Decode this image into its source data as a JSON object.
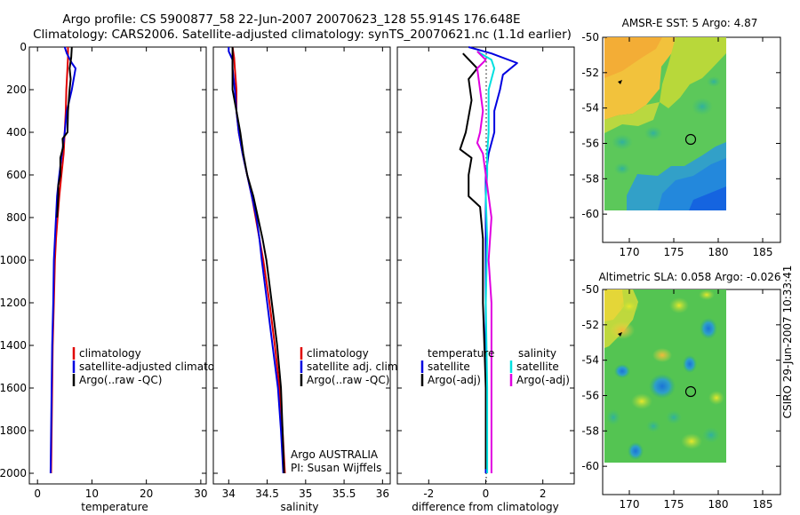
{
  "title_line1": "Argo profile: CS 5900877_58 22-Jun-2007 20070623_128 55.914S 176.648E",
  "title_line2": "Climatology: CARS2006. Satellite-adjusted climatology: synTS_20070621.nc (1.1d earlier)",
  "side_label": "CSIRO 29-Jun-2007 10:33:41",
  "colors": {
    "climatology": "#e00000",
    "satellite": "#0000e0",
    "argo": "#000000",
    "satellite_sal": "#00e0e0",
    "argo_adj": "#e000e0"
  },
  "chart_data": [
    {
      "id": "temperature",
      "type": "line",
      "xlabel": "temperature",
      "xlim": [
        -1.5,
        31
      ],
      "xticks": [
        0,
        10,
        20,
        30
      ],
      "xtick_labels": [
        "0",
        "10",
        "20",
        "30"
      ],
      "ylim": [
        2050,
        0
      ],
      "yticks": [
        0,
        200,
        400,
        600,
        800,
        1000,
        1200,
        1400,
        1600,
        1800,
        2000
      ],
      "ytick_labels": [
        "0",
        "200",
        "400",
        "600",
        "800",
        "1000",
        "1200",
        "1400",
        "1600",
        "1800",
        "2000"
      ],
      "legend": {
        "position": "lower-right",
        "entries": [
          "climatology",
          "satellite-adjusted climatology",
          "Argo(..raw -QC)"
        ]
      },
      "series": [
        {
          "name": "climatology",
          "color_key": "climatology",
          "points": [
            [
              5.6,
              0
            ],
            [
              5.6,
              50
            ],
            [
              5.5,
              100
            ],
            [
              5.3,
              200
            ],
            [
              5.2,
              300
            ],
            [
              5.0,
              400
            ],
            [
              4.8,
              500
            ],
            [
              4.4,
              600
            ],
            [
              4.0,
              700
            ],
            [
              3.7,
              800
            ],
            [
              3.4,
              900
            ],
            [
              3.2,
              1000
            ],
            [
              3.0,
              1200
            ],
            [
              2.8,
              1400
            ],
            [
              2.7,
              1600
            ],
            [
              2.6,
              1800
            ],
            [
              2.5,
              2000
            ]
          ]
        },
        {
          "name": "satellite-adjusted climatology",
          "color_key": "satellite",
          "points": [
            [
              5.0,
              0
            ],
            [
              5.4,
              30
            ],
            [
              6.3,
              75
            ],
            [
              7.0,
              100
            ],
            [
              6.3,
              200
            ],
            [
              5.4,
              300
            ],
            [
              5.0,
              400
            ],
            [
              4.5,
              500
            ],
            [
              4.0,
              600
            ],
            [
              3.6,
              700
            ],
            [
              3.4,
              800
            ],
            [
              3.2,
              900
            ],
            [
              3.0,
              1000
            ],
            [
              2.9,
              1200
            ],
            [
              2.7,
              1400
            ],
            [
              2.6,
              1600
            ],
            [
              2.5,
              1800
            ],
            [
              2.4,
              2000
            ]
          ]
        },
        {
          "name": "Argo(..raw -QC)",
          "color_key": "argo",
          "points": [
            [
              6.3,
              0
            ],
            [
              6.2,
              50
            ],
            [
              5.9,
              100
            ],
            [
              6.1,
              150
            ],
            [
              5.9,
              200
            ],
            [
              5.6,
              300
            ],
            [
              5.5,
              400
            ],
            [
              4.6,
              430
            ],
            [
              4.7,
              470
            ],
            [
              4.2,
              520
            ],
            [
              4.2,
              600
            ],
            [
              3.8,
              650
            ],
            [
              3.8,
              700
            ],
            [
              3.6,
              800
            ]
          ]
        }
      ]
    },
    {
      "id": "salinity",
      "type": "line",
      "xlabel": "salinity",
      "xlim": [
        33.8,
        36.1
      ],
      "xticks": [
        34,
        34.5,
        35,
        35.5,
        36
      ],
      "xtick_labels": [
        "34",
        "34.5",
        "35",
        "35.5",
        "36"
      ],
      "ylim": [
        2050,
        0
      ],
      "yticks": [
        0,
        200,
        400,
        600,
        800,
        1000,
        1200,
        1400,
        1600,
        1800,
        2000
      ],
      "legend": {
        "position": "lower-right",
        "entries": [
          "climatology",
          "satellite adj. clim.",
          "Argo(..raw -QC)"
        ]
      },
      "annotation": [
        "Argo AUSTRALIA",
        "PI: Susan Wijffels"
      ],
      "series": [
        {
          "name": "climatology",
          "color_key": "climatology",
          "points": [
            [
              34.05,
              0
            ],
            [
              34.07,
              50
            ],
            [
              34.08,
              100
            ],
            [
              34.1,
              200
            ],
            [
              34.1,
              300
            ],
            [
              34.13,
              400
            ],
            [
              34.18,
              500
            ],
            [
              34.24,
              600
            ],
            [
              34.3,
              700
            ],
            [
              34.35,
              800
            ],
            [
              34.4,
              900
            ],
            [
              34.45,
              1000
            ],
            [
              34.53,
              1200
            ],
            [
              34.6,
              1400
            ],
            [
              34.66,
              1600
            ],
            [
              34.7,
              1800
            ],
            [
              34.73,
              2000
            ]
          ]
        },
        {
          "name": "satellite adj. clim.",
          "color_key": "satellite",
          "points": [
            [
              34.0,
              0
            ],
            [
              34.0,
              20
            ],
            [
              34.05,
              60
            ],
            [
              34.05,
              100
            ],
            [
              34.08,
              200
            ],
            [
              34.1,
              300
            ],
            [
              34.13,
              400
            ],
            [
              34.18,
              500
            ],
            [
              34.24,
              600
            ],
            [
              34.3,
              700
            ],
            [
              34.36,
              800
            ],
            [
              34.4,
              900
            ],
            [
              34.43,
              1000
            ],
            [
              34.5,
              1200
            ],
            [
              34.57,
              1400
            ],
            [
              34.64,
              1600
            ],
            [
              34.68,
              1800
            ],
            [
              34.71,
              2000
            ]
          ]
        },
        {
          "name": "Argo(..raw -QC)",
          "color_key": "argo",
          "points": [
            [
              34.05,
              0
            ],
            [
              34.05,
              100
            ],
            [
              34.05,
              200
            ],
            [
              34.1,
              300
            ],
            [
              34.15,
              400
            ],
            [
              34.19,
              500
            ],
            [
              34.24,
              600
            ],
            [
              34.32,
              700
            ],
            [
              34.38,
              800
            ],
            [
              34.44,
              900
            ],
            [
              34.49,
              1000
            ],
            [
              34.56,
              1200
            ],
            [
              34.63,
              1400
            ],
            [
              34.68,
              1600
            ],
            [
              34.7,
              1800
            ],
            [
              34.72,
              2000
            ]
          ]
        }
      ]
    },
    {
      "id": "difference",
      "type": "line",
      "xlabel": "difference from climatology",
      "xlim": [
        -3.1,
        3.1
      ],
      "xticks": [
        -2,
        0,
        2
      ],
      "xtick_labels": [
        "-2",
        "0",
        "2"
      ],
      "ylim": [
        2050,
        0
      ],
      "yticks": [
        0,
        200,
        400,
        600,
        800,
        1000,
        1200,
        1400,
        1600,
        1800,
        2000
      ],
      "legend": {
        "position": "lower-right",
        "headers": [
          "temperature",
          "salinity"
        ],
        "entries": [
          "satellite",
          "Argo(-adj)",
          "satellite",
          "Argo(-adj)"
        ]
      },
      "series": [
        {
          "name": "temperature satellite",
          "color_key": "satellite",
          "points": [
            [
              -0.6,
              0
            ],
            [
              0.2,
              30
            ],
            [
              1.1,
              75
            ],
            [
              0.6,
              130
            ],
            [
              0.5,
              200
            ],
            [
              0.3,
              300
            ],
            [
              0.3,
              400
            ],
            [
              0.1,
              500
            ],
            [
              0.0,
              600
            ],
            [
              0.0,
              700
            ],
            [
              0.0,
              800
            ],
            [
              0.0,
              1000
            ],
            [
              0.0,
              1400
            ],
            [
              0.0,
              1800
            ],
            [
              0.0,
              2000
            ]
          ]
        },
        {
          "name": "temperature Argo(-adj)",
          "color_key": "argo",
          "points": [
            [
              -0.8,
              30
            ],
            [
              -0.3,
              100
            ],
            [
              -0.6,
              150
            ],
            [
              -0.5,
              250
            ],
            [
              -0.7,
              400
            ],
            [
              -0.9,
              480
            ],
            [
              -0.5,
              520
            ],
            [
              -0.6,
              600
            ],
            [
              -0.6,
              700
            ],
            [
              -0.2,
              750
            ],
            [
              -0.1,
              900
            ],
            [
              -0.1,
              1200
            ],
            [
              0.0,
              1600
            ],
            [
              0.0,
              1980
            ]
          ]
        },
        {
          "name": "salinity satellite",
          "color_key": "satellite_sal",
          "points": [
            [
              -0.3,
              20
            ],
            [
              0.2,
              60
            ],
            [
              0.3,
              100
            ],
            [
              0.1,
              200
            ],
            [
              0.1,
              400
            ],
            [
              0.05,
              500
            ],
            [
              0.05,
              600
            ],
            [
              0.0,
              700
            ],
            [
              0.05,
              900
            ],
            [
              0.0,
              1200
            ],
            [
              0.05,
              1600
            ],
            [
              0.05,
              2000
            ]
          ]
        },
        {
          "name": "salinity Argo(-adj)",
          "color_key": "argo_adj",
          "points": [
            [
              -0.3,
              20
            ],
            [
              0.0,
              60
            ],
            [
              -0.3,
              100
            ],
            [
              -0.2,
              200
            ],
            [
              -0.1,
              300
            ],
            [
              -0.2,
              400
            ],
            [
              -0.3,
              450
            ],
            [
              -0.1,
              500
            ],
            [
              0.0,
              600
            ],
            [
              0.1,
              700
            ],
            [
              0.2,
              800
            ],
            [
              0.1,
              1000
            ],
            [
              0.2,
              1200
            ],
            [
              0.2,
              1600
            ],
            [
              0.2,
              2000
            ]
          ]
        }
      ]
    },
    {
      "id": "sst_map",
      "type": "heatmap",
      "title": "AMSR-E SST: 5 Argo: 4.87",
      "xlim": [
        167,
        187
      ],
      "xticks": [
        170,
        175,
        180,
        185
      ],
      "xtick_labels": [
        "170",
        "175",
        "180",
        "185"
      ],
      "ylim": [
        -61.6,
        -50
      ],
      "yticks": [
        -50,
        -52,
        -54,
        -56,
        -58,
        -60
      ],
      "ytick_labels": [
        "-50",
        "-52",
        "-54",
        "-56",
        "-58",
        "-60"
      ],
      "data_extent": {
        "lon": [
          167.6,
          180
        ],
        "lat": [
          -60,
          -50
        ]
      },
      "argo_position": [
        176.648,
        -55.914
      ],
      "prev_position": [
        169.3,
        -52.5
      ]
    },
    {
      "id": "sla_map",
      "type": "heatmap",
      "title": "Altimetric SLA: 0.058 Argo: -0.026",
      "xlim": [
        167,
        187
      ],
      "xticks": [
        170,
        175,
        180,
        185
      ],
      "xtick_labels": [
        "170",
        "175",
        "180",
        "185"
      ],
      "ylim": [
        -61.6,
        -50
      ],
      "yticks": [
        -50,
        -52,
        -54,
        -56,
        -58,
        -60
      ],
      "ytick_labels": [
        "-50",
        "-52",
        "-54",
        "-56",
        "-58",
        "-60"
      ],
      "data_extent": {
        "lon": [
          167.6,
          180
        ],
        "lat": [
          -60,
          -50
        ]
      },
      "argo_position": [
        176.648,
        -55.914
      ],
      "prev_position": [
        169.3,
        -52.7
      ]
    }
  ]
}
